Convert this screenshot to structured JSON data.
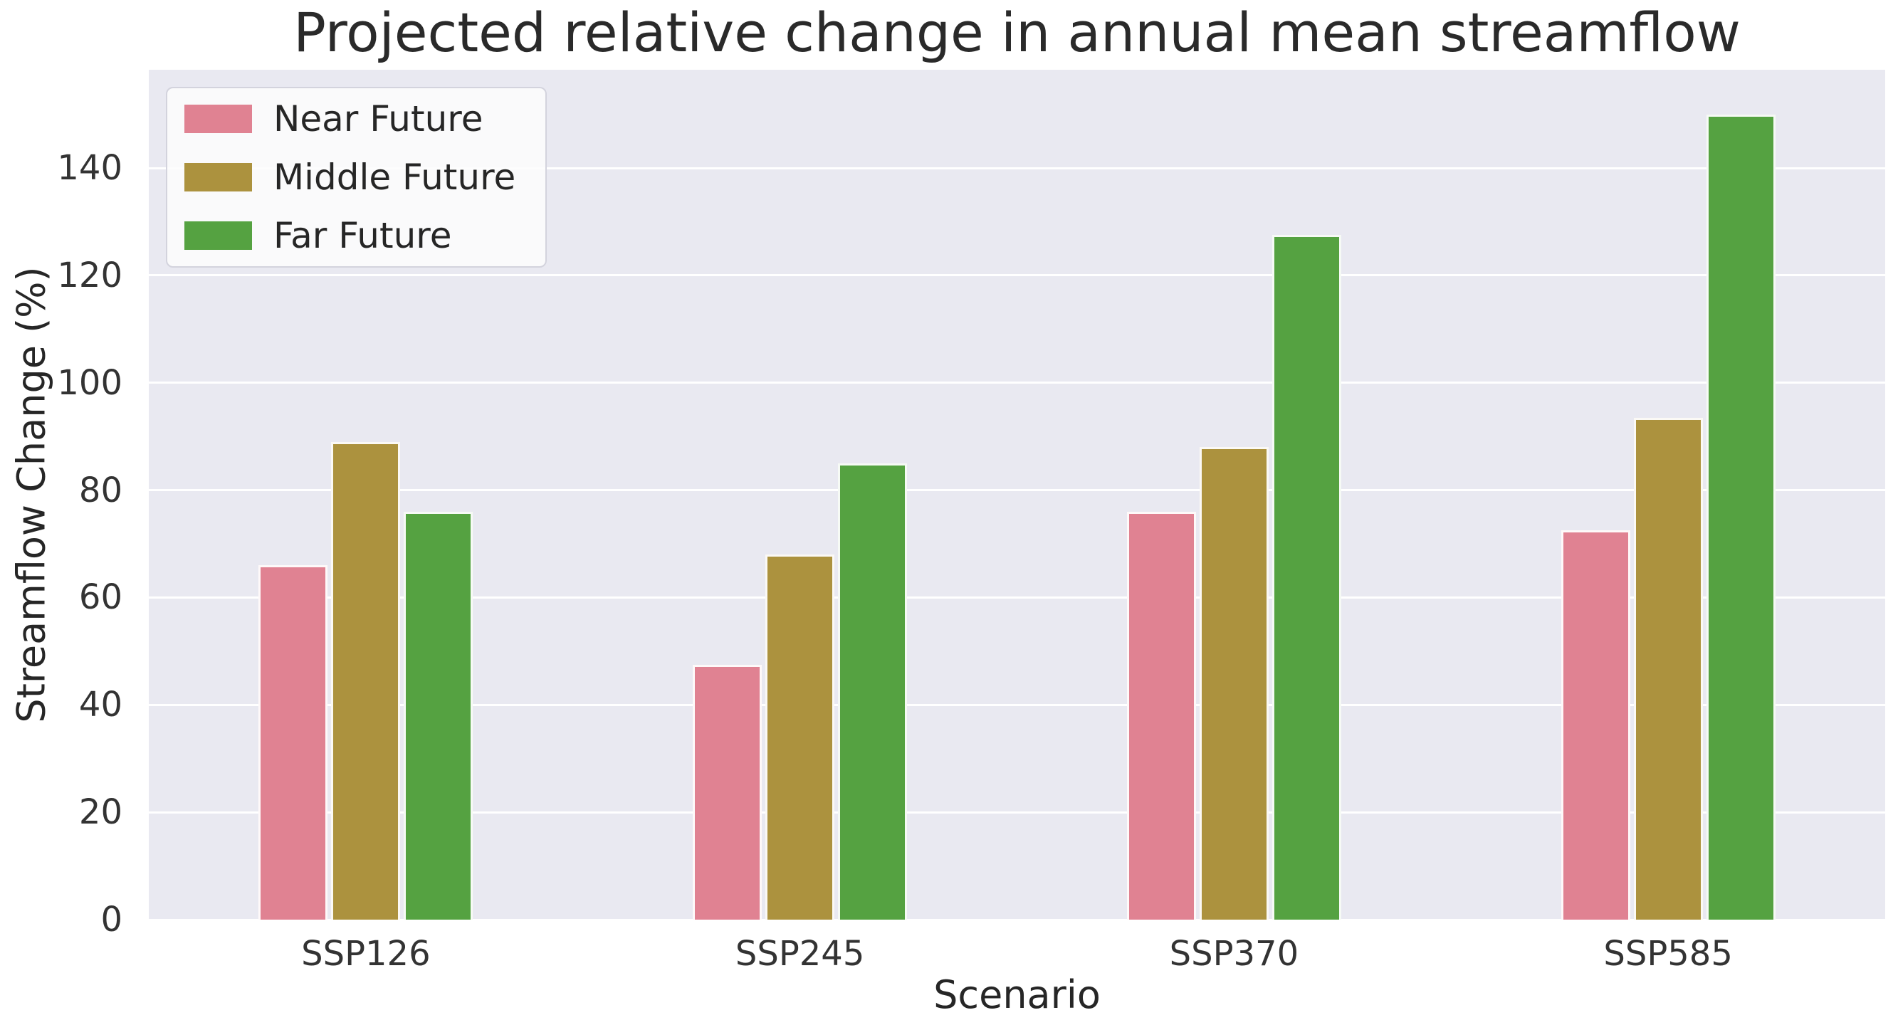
{
  "chart_data": {
    "type": "bar",
    "title": "Projected relative change in annual mean streamflow",
    "xlabel": "Scenario",
    "ylabel": "Streamflow Change (%)",
    "categories": [
      "SSP126",
      "SSP245",
      "SSP370",
      "SSP585"
    ],
    "series": [
      {
        "name": "Near Future",
        "color": "#e08292",
        "values": [
          66,
          47.5,
          76,
          72.5
        ]
      },
      {
        "name": "Middle Future",
        "color": "#ac923e",
        "values": [
          89,
          68,
          88,
          93.5
        ]
      },
      {
        "name": "Far Future",
        "color": "#55a241",
        "values": [
          76,
          85,
          127.5,
          150
        ]
      }
    ],
    "yticks": [
      0,
      20,
      40,
      60,
      80,
      100,
      120,
      140
    ],
    "ylim": [
      0,
      158.3
    ],
    "grid": true,
    "legend_position": "upper left",
    "plot_bg": "#e9e9f1",
    "grid_color": "#ffffff",
    "text_color": "#262626"
  }
}
